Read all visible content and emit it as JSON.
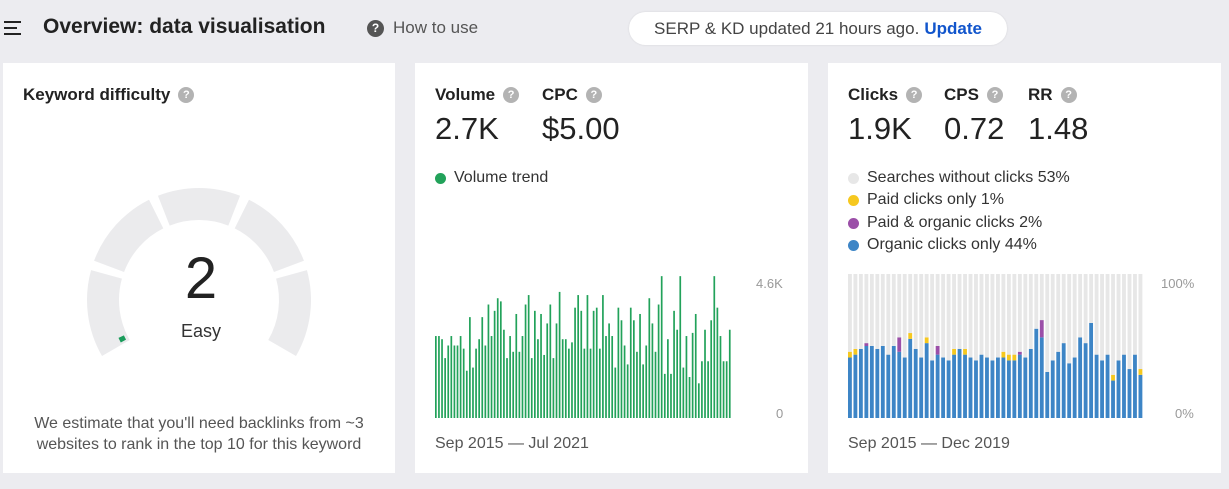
{
  "header": {
    "title": "Overview: data visualisation",
    "howto": "How to use",
    "serp_text": "SERP & KD updated 21 hours ago.",
    "serp_link": "Update",
    "help_glyph": "?",
    "menu_icon": "hamburger-icon"
  },
  "kd": {
    "label": "Keyword difficulty",
    "value": "2",
    "level": "Easy",
    "note": "We estimate that you'll need backlinks from ~3 websites to rank in the top 10 for this keyword",
    "score": 2,
    "accent": "#1a9c5b",
    "track": "#ebebed"
  },
  "volume": {
    "label": "Volume",
    "value": "2.7K",
    "cpc_label": "CPC",
    "cpc_value": "$5.00",
    "legend": "Volume trend",
    "color": "#22a25a",
    "ymax_label": "4.6K",
    "ymin_label": "0",
    "range": "Sep 2015 — Jul 2021"
  },
  "clicks": {
    "label": "Clicks",
    "value": "1.9K",
    "cps_label": "CPS",
    "cps_value": "0.72",
    "rr_label": "RR",
    "rr_value": "1.48",
    "legend": [
      {
        "label": "Searches without clicks 53%",
        "color": "#e7e7e7"
      },
      {
        "label": "Paid clicks only 1%",
        "color": "#f6c81f"
      },
      {
        "label": "Paid & organic clicks 2%",
        "color": "#9b4fa8"
      },
      {
        "label": "Organic clicks only 44%",
        "color": "#3d85c6"
      }
    ],
    "ymax_label": "100%",
    "ymin_label": "0%",
    "range": "Sep 2015 — Dec 2019"
  },
  "chart_data": [
    {
      "type": "bar",
      "series": [
        {
          "name": "Volume trend",
          "values": [
            2.6,
            2.6,
            2.5,
            1.9,
            2.3,
            2.6,
            2.3,
            2.3,
            2.6,
            2.2,
            1.5,
            3.2,
            1.6,
            2.2,
            2.5,
            3.2,
            2.3,
            3.6,
            2.6,
            3.4,
            3.8,
            3.7,
            2.8,
            1.9,
            2.6,
            2.1,
            3.3,
            2.1,
            2.6,
            3.6,
            3.9,
            1.9,
            3.4,
            2.5,
            3.3,
            2.0,
            3.0,
            3.6,
            1.9,
            3.0,
            4.0,
            2.5,
            2.5,
            2.2,
            2.4,
            3.5,
            3.9,
            3.4,
            2.2,
            3.9,
            2.2,
            3.4,
            3.5,
            2.2,
            3.9,
            2.6,
            3.0,
            2.6,
            1.6,
            3.5,
            3.1,
            2.3,
            1.7,
            3.5,
            3.1,
            2.1,
            3.3,
            1.7,
            2.3,
            3.8,
            3.0,
            2.1,
            3.6,
            4.5,
            1.4,
            2.5,
            1.4,
            3.4,
            2.8,
            4.5,
            1.6,
            2.6,
            1.3,
            2.7,
            3.3,
            1.1,
            1.8,
            2.8,
            1.8,
            3.1,
            4.5,
            3.5,
            2.6,
            1.8,
            1.8,
            2.8
          ]
        }
      ],
      "ylim": [
        0,
        4600
      ],
      "yticks": [
        "0",
        "4.6K"
      ],
      "x_range": [
        "Sep 2015",
        "Jul 2021"
      ]
    },
    {
      "type": "bar",
      "stacked": true,
      "ylim": [
        0,
        100
      ],
      "yticks": [
        "0%",
        "100%"
      ],
      "x_range": [
        "Sep 2015",
        "Dec 2019"
      ],
      "series": [
        {
          "name": "Organic clicks only",
          "values": [
            42,
            44,
            48,
            50,
            50,
            48,
            50,
            44,
            50,
            46,
            42,
            55,
            48,
            42,
            52,
            40,
            44,
            42,
            40,
            44,
            48,
            44,
            42,
            40,
            44,
            42,
            40,
            42,
            42,
            40,
            40,
            44,
            42,
            48,
            62,
            56,
            32,
            40,
            46,
            52,
            38,
            42,
            56,
            52,
            66,
            44,
            40,
            44,
            26,
            40,
            44,
            34,
            44,
            30
          ]
        },
        {
          "name": "Paid & organic clicks",
          "values": [
            0,
            0,
            0,
            2,
            0,
            0,
            0,
            0,
            0,
            10,
            0,
            0,
            0,
            0,
            0,
            0,
            6,
            0,
            0,
            0,
            0,
            0,
            0,
            0,
            0,
            0,
            0,
            0,
            0,
            0,
            0,
            2,
            0,
            0,
            0,
            12,
            0,
            0,
            0,
            0,
            0,
            0,
            0,
            0,
            0,
            0,
            0,
            0,
            0,
            0,
            0,
            0,
            0,
            0
          ]
        },
        {
          "name": "Paid clicks only",
          "values": [
            4,
            4,
            0,
            0,
            0,
            0,
            0,
            0,
            0,
            0,
            0,
            4,
            0,
            0,
            4,
            0,
            0,
            0,
            0,
            4,
            0,
            4,
            0,
            0,
            0,
            0,
            0,
            0,
            4,
            4,
            4,
            0,
            0,
            0,
            0,
            0,
            0,
            0,
            0,
            0,
            0,
            0,
            0,
            0,
            0,
            0,
            0,
            0,
            4,
            0,
            0,
            0,
            0,
            4
          ]
        },
        {
          "name": "Searches without clicks",
          "values": [
            54,
            52,
            52,
            48,
            50,
            52,
            50,
            56,
            50,
            44,
            58,
            41,
            52,
            58,
            44,
            60,
            50,
            58,
            60,
            52,
            52,
            52,
            58,
            60,
            56,
            58,
            60,
            58,
            54,
            56,
            56,
            54,
            58,
            52,
            38,
            32,
            68,
            60,
            54,
            48,
            62,
            58,
            44,
            48,
            34,
            56,
            60,
            56,
            70,
            60,
            56,
            66,
            56,
            66
          ]
        }
      ]
    }
  ]
}
